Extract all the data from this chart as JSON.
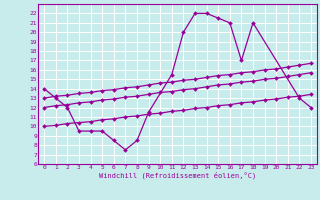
{
  "xlabel": "Windchill (Refroidissement éolien,°C)",
  "bg_color": "#c8ecec",
  "grid_color": "#ffffff",
  "line_color": "#990099",
  "xlim": [
    -0.5,
    23.5
  ],
  "ylim": [
    6,
    23
  ],
  "xticks": [
    0,
    1,
    2,
    3,
    4,
    5,
    6,
    7,
    8,
    9,
    10,
    11,
    12,
    13,
    14,
    15,
    16,
    17,
    18,
    19,
    20,
    21,
    22,
    23
  ],
  "yticks": [
    6,
    7,
    8,
    9,
    10,
    11,
    12,
    13,
    14,
    15,
    16,
    17,
    18,
    19,
    20,
    21,
    22
  ],
  "series": [
    {
      "x": [
        0,
        1,
        2,
        3,
        4,
        5,
        6,
        7,
        8,
        9,
        11,
        12,
        13,
        14,
        15,
        16,
        17,
        18,
        22,
        23
      ],
      "y": [
        14,
        13,
        12,
        9.5,
        9.5,
        9.5,
        8.5,
        7.5,
        8.5,
        11.5,
        15.5,
        20.0,
        22.0,
        22.0,
        21.5,
        21.0,
        17.0,
        21.0,
        13.0,
        12.0
      ]
    },
    {
      "x": [
        0,
        1,
        2,
        3,
        4,
        5,
        6,
        7,
        8,
        9,
        10,
        11,
        12,
        13,
        14,
        15,
        16,
        17,
        18,
        19,
        20,
        21,
        22,
        23
      ],
      "y": [
        13.0,
        13.2,
        13.3,
        13.5,
        13.6,
        13.8,
        13.9,
        14.1,
        14.2,
        14.4,
        14.6,
        14.7,
        14.9,
        15.0,
        15.2,
        15.4,
        15.5,
        15.7,
        15.8,
        16.0,
        16.1,
        16.3,
        16.5,
        16.7
      ]
    },
    {
      "x": [
        0,
        1,
        2,
        3,
        4,
        5,
        6,
        7,
        8,
        9,
        10,
        11,
        12,
        13,
        14,
        15,
        16,
        17,
        18,
        19,
        20,
        21,
        22,
        23
      ],
      "y": [
        12.0,
        12.2,
        12.3,
        12.5,
        12.6,
        12.8,
        12.9,
        13.1,
        13.2,
        13.4,
        13.6,
        13.7,
        13.9,
        14.0,
        14.2,
        14.4,
        14.5,
        14.7,
        14.8,
        15.0,
        15.1,
        15.3,
        15.5,
        15.7
      ]
    },
    {
      "x": [
        0,
        1,
        2,
        3,
        4,
        5,
        6,
        7,
        8,
        9,
        10,
        11,
        12,
        13,
        14,
        15,
        16,
        17,
        18,
        19,
        20,
        21,
        22,
        23
      ],
      "y": [
        10.0,
        10.1,
        10.3,
        10.4,
        10.5,
        10.7,
        10.8,
        11.0,
        11.1,
        11.3,
        11.4,
        11.6,
        11.7,
        11.9,
        12.0,
        12.2,
        12.3,
        12.5,
        12.6,
        12.8,
        12.9,
        13.1,
        13.2,
        13.4
      ]
    }
  ]
}
